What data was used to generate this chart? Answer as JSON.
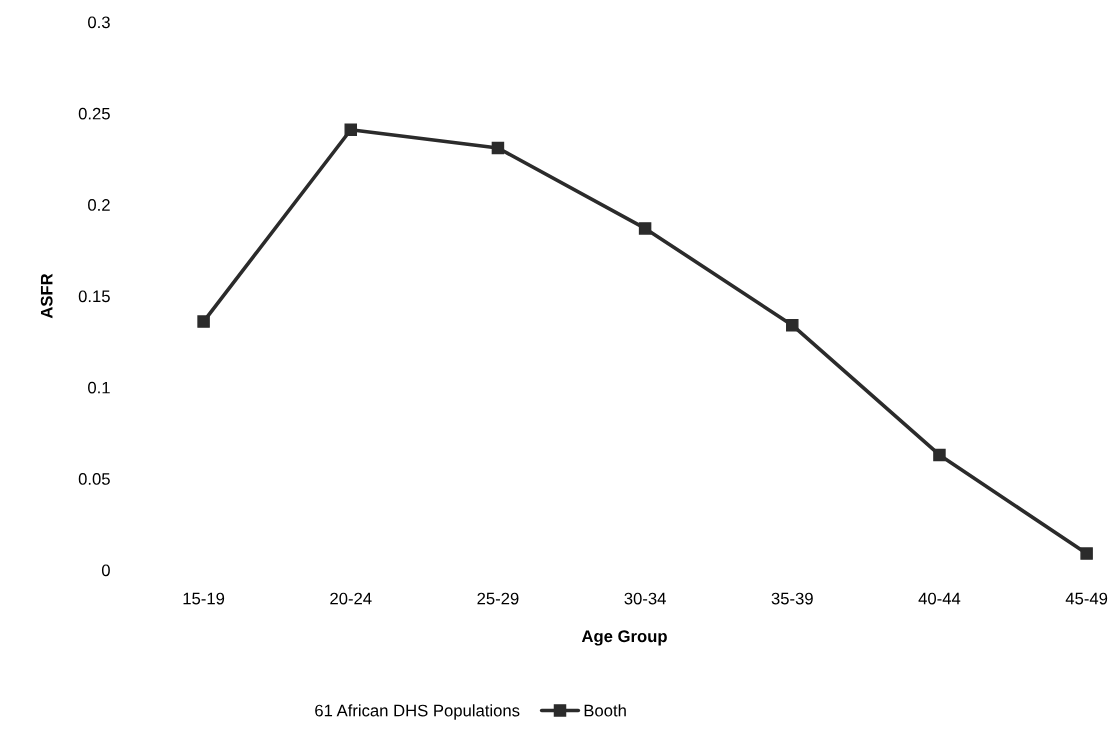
{
  "chart_data": {
    "type": "line",
    "xlabel": "Age Group",
    "ylabel": "ASFR",
    "categories": [
      "15-19",
      "20-24",
      "25-29",
      "30-34",
      "35-39",
      "40-44",
      "45-49"
    ],
    "series": [
      {
        "name": "Booth",
        "color": "#2b2b2b",
        "values": [
          0.136,
          0.241,
          0.231,
          0.187,
          0.134,
          0.063,
          0.009
        ]
      }
    ],
    "ylim": [
      0,
      0.3
    ],
    "yticks": [
      0,
      0.05,
      0.1,
      0.15,
      0.2,
      0.25,
      0.3
    ],
    "marker": "square",
    "line_style": "solid",
    "grid": false,
    "legend": "bottom",
    "annotations": [
      "61 African DHS Populations"
    ]
  }
}
